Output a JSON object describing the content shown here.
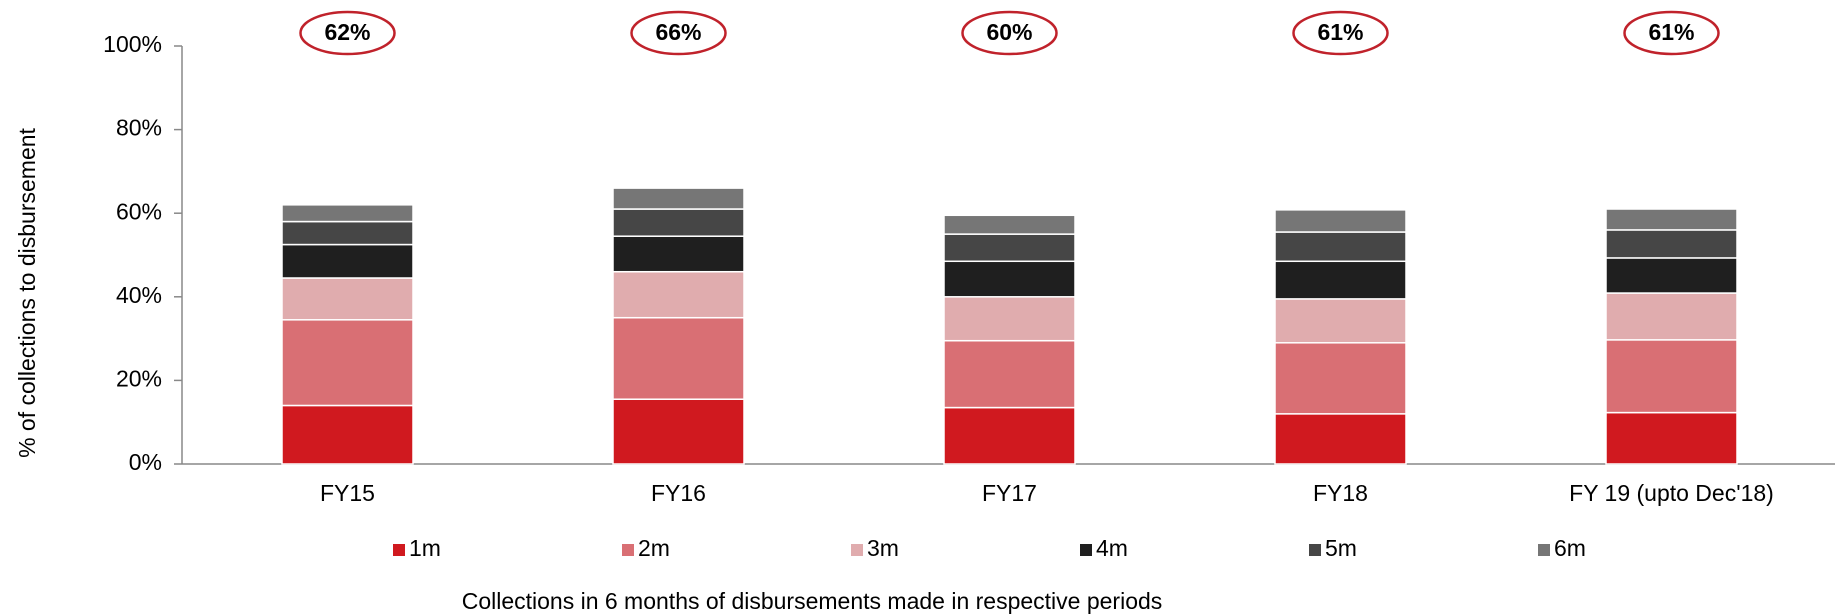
{
  "chart_data": {
    "type": "stacked_bar",
    "y_axis_label": "% of collections to disbursement",
    "x_axis_label": "Collections in 6 months of disbursements  made in respective periods",
    "categories": [
      "FY15",
      "FY16",
      "FY17",
      "FY18",
      "FY 19 (upto Dec'18)"
    ],
    "series": [
      {
        "name": "1m",
        "color": "#d0191f",
        "values": [
          14,
          15.5,
          13.5,
          12,
          12.3
        ]
      },
      {
        "name": "2m",
        "color": "#d96f74",
        "values": [
          20.5,
          19.5,
          16,
          17,
          17.4
        ]
      },
      {
        "name": "3m",
        "color": "#e0acae",
        "values": [
          10,
          11,
          10.5,
          10.5,
          11.2
        ]
      },
      {
        "name": "4m",
        "color": "#1f1f1f",
        "values": [
          8,
          8.5,
          8.5,
          9,
          8.4
        ]
      },
      {
        "name": "5m",
        "color": "#464646",
        "values": [
          5.5,
          6.5,
          6.5,
          7,
          6.7
        ]
      },
      {
        "name": "6m",
        "color": "#767676",
        "values": [
          4,
          5,
          4.5,
          5.3,
          5
        ]
      }
    ],
    "total_labels": [
      "62%",
      "66%",
      "60%",
      "61%",
      "61%"
    ],
    "ylim": [
      0,
      100
    ],
    "yticks": [
      {
        "value": 0,
        "label": "0%"
      },
      {
        "value": 20,
        "label": "20%"
      },
      {
        "value": 40,
        "label": "40%"
      },
      {
        "value": 60,
        "label": "60%"
      },
      {
        "value": 80,
        "label": "80%"
      },
      {
        "value": 100,
        "label": "100%"
      }
    ],
    "legend": "bottom"
  }
}
